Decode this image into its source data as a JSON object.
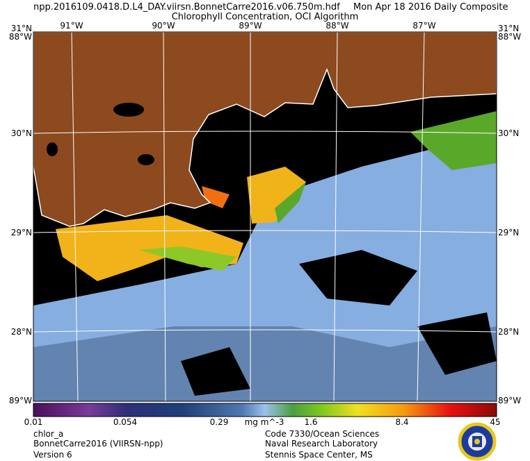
{
  "header": {
    "filename": "npp.2016109.0418.D.L4_DAY.viirsn.BonnetCarre2016.v06.750m.hdf",
    "date": "Mon Apr 18 2016 Daily Composite",
    "title": "Chlorophyll Concentration, OCI Algorithm"
  },
  "map": {
    "lon_labels": [
      "91°W",
      "90°W",
      "89°W",
      "88°W",
      "87°W"
    ],
    "lat_labels": [
      "31°N",
      "30°N",
      "29°N",
      "28°N"
    ],
    "corner_top": "88°W",
    "corner_bottom": "89°W"
  },
  "colorbar": {
    "labels": [
      "0.01",
      "0.054",
      "0.29",
      "1.6",
      "8.4",
      "45"
    ],
    "units": "mg m^-3"
  },
  "footer": {
    "left": [
      "chlor_a",
      "BonnetCarre2016 (VIIRSN-npp)",
      "Version 6"
    ],
    "right": [
      "Code 7330/Ocean Sciences",
      "Naval Research Laboratory",
      "Stennis Space Center, MS"
    ]
  }
}
